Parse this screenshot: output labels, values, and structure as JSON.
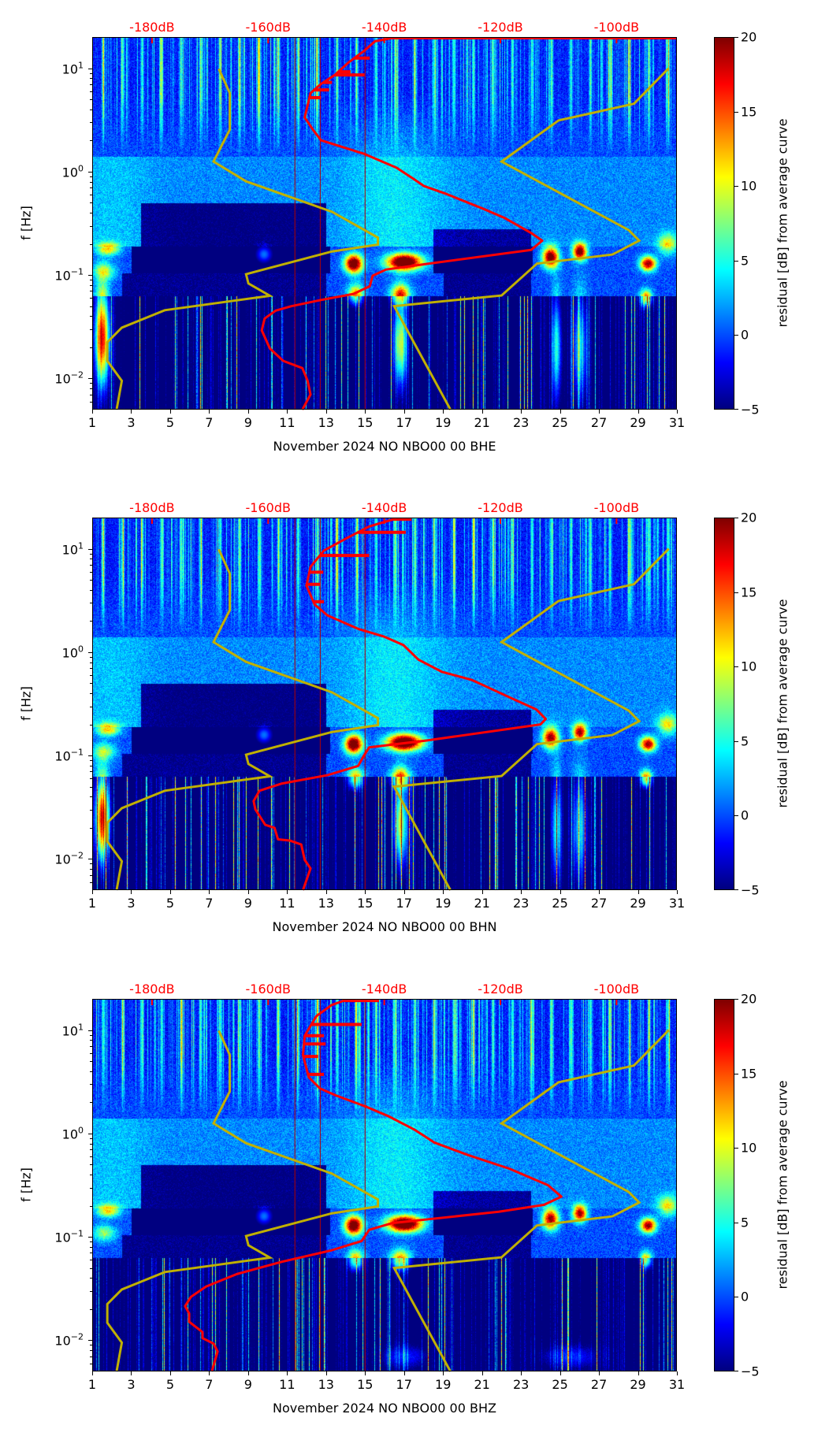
{
  "noise_models": {
    "low_noise_model": {
      "color": "#c0b000",
      "points": [
        [
          -186.1,
          0.005
        ],
        [
          -185.2,
          0.0095
        ],
        [
          -187.7,
          0.0148
        ],
        [
          -187.7,
          0.0224
        ],
        [
          -185.2,
          0.031
        ],
        [
          -177.8,
          0.0457
        ],
        [
          -159.7,
          0.063
        ],
        [
          -163.4,
          0.083
        ],
        [
          -163.8,
          0.102
        ],
        [
          -149.0,
          0.169
        ],
        [
          -141.1,
          0.197
        ],
        [
          -141.1,
          0.23
        ],
        [
          -149.0,
          0.409
        ],
        [
          -163.8,
          0.805
        ],
        [
          -169.4,
          1.25
        ],
        [
          -166.6,
          2.55
        ],
        [
          -166.6,
          5.74
        ],
        [
          -168.5,
          9.86
        ]
      ]
    },
    "high_noise_model": {
      "color": "#c0b000",
      "points": [
        [
          -128.6,
          0.005
        ],
        [
          -138.3,
          0.05
        ],
        [
          -119.8,
          0.0635
        ],
        [
          -113.7,
          0.129
        ],
        [
          -100.7,
          0.158
        ],
        [
          -96.1,
          0.215
        ],
        [
          -97.9,
          0.272
        ],
        [
          -119.8,
          1.25
        ],
        [
          -110.0,
          3.12
        ],
        [
          -97.0,
          4.53
        ],
        [
          -91.0,
          10.0
        ]
      ]
    }
  },
  "chart_data": [
    {
      "type": "heatmap",
      "xlabel": "November 2024 NO NBO00 00 BHE",
      "ylabel": "f [Hz]",
      "xlim": [
        1,
        31
      ],
      "ylim": [
        0.005,
        20
      ],
      "xticks": [
        1,
        3,
        5,
        7,
        9,
        11,
        13,
        15,
        17,
        19,
        21,
        23,
        25,
        27,
        29,
        31
      ],
      "yticks": [
        {
          "value": 0.01,
          "base": "10",
          "exp": "−2"
        },
        {
          "value": 0.1,
          "base": "10",
          "exp": "−1"
        },
        {
          "value": 1,
          "base": "10",
          "exp": "0"
        },
        {
          "value": 10,
          "base": "10",
          "exp": "1"
        }
      ],
      "top_axis": {
        "range_dB": [
          -190.3,
          -89.6
        ],
        "values": [
          -180,
          -160,
          -140,
          -120,
          -100
        ],
        "labels": [
          "-180dB",
          "-160dB",
          "-140dB",
          "-120dB",
          "-100dB"
        ],
        "color": "#ff0000"
      },
      "colorbar": {
        "label": "residual [dB] from average curve",
        "range": [
          -5,
          20
        ],
        "ticks": [
          20,
          15,
          10,
          5,
          0,
          -5
        ],
        "tick_labels": [
          "20",
          "15",
          "10",
          "5",
          "0",
          "−5"
        ],
        "colormap": "jet"
      },
      "pdf_mode_curve": {
        "color": "#ff0000",
        "top_line": true,
        "points": [
          [
            -154.1,
            0.005
          ],
          [
            -152.7,
            0.007
          ],
          [
            -153.2,
            0.0095
          ],
          [
            -154.1,
            0.0126
          ],
          [
            -157.4,
            0.0148
          ],
          [
            -159.7,
            0.0195
          ],
          [
            -161.1,
            0.0292
          ],
          [
            -160.6,
            0.038
          ],
          [
            -158.7,
            0.0453
          ],
          [
            -156.0,
            0.05
          ],
          [
            -150.9,
            0.0574
          ],
          [
            -145.3,
            0.0657
          ],
          [
            -142.5,
            0.0779
          ],
          [
            -142.0,
            0.0986
          ],
          [
            -139.7,
            0.113
          ],
          [
            -132.3,
            0.129
          ],
          [
            -114.7,
            0.175
          ],
          [
            -112.8,
            0.215
          ],
          [
            -114.7,
            0.255
          ],
          [
            -119.3,
            0.357
          ],
          [
            -123.0,
            0.438
          ],
          [
            -129.5,
            0.614
          ],
          [
            -133.2,
            0.727
          ],
          [
            -135.1,
            0.861
          ],
          [
            -137.9,
            1.09
          ],
          [
            -143.4,
            1.48
          ],
          [
            -150.9,
            2.01
          ],
          [
            -152.3,
            2.55
          ],
          [
            -153.7,
            3.34
          ],
          [
            -153.2,
            4.38
          ],
          [
            -152.7,
            5.74
          ],
          [
            -150.9,
            7.03
          ],
          [
            -148.5,
            8.61
          ],
          [
            -146.2,
            11.3
          ],
          [
            -143.4,
            14.8
          ],
          [
            -141.6,
            18.2
          ],
          [
            -139.0,
            19.4
          ]
        ],
        "spikes": [
          [
            12.5,
            -142.5
          ],
          [
            9.23,
            -145.8
          ],
          [
            8.61,
            -143.4
          ],
          [
            7.28,
            -149.0
          ],
          [
            6.17,
            -149.5
          ],
          [
            5.19,
            -150.9
          ]
        ]
      },
      "red_vertical_days": [
        11.4,
        12.7,
        15.0
      ],
      "events": [
        [
          1.5,
          0.025,
          24,
          0.35,
          0.45
        ],
        [
          14.4,
          0.13,
          24,
          0.45,
          0.09
        ],
        [
          17.0,
          0.135,
          26,
          0.9,
          0.08
        ],
        [
          24.5,
          0.15,
          22,
          0.4,
          0.1
        ],
        [
          26.0,
          0.17,
          22,
          0.35,
          0.08
        ],
        [
          29.5,
          0.13,
          20,
          0.4,
          0.07
        ],
        [
          29.4,
          0.06,
          16,
          0.3,
          0.08
        ],
        [
          14.5,
          0.065,
          14,
          0.4,
          0.1
        ],
        [
          16.8,
          0.065,
          14,
          0.5,
          0.1
        ],
        [
          16.8,
          0.022,
          16,
          0.35,
          0.4
        ],
        [
          1.8,
          0.18,
          12,
          0.6,
          0.06
        ],
        [
          1.6,
          0.11,
          8,
          0.6,
          0.08
        ],
        [
          9.8,
          0.16,
          8,
          0.4,
          0.08
        ],
        [
          24.8,
          0.02,
          12,
          0.25,
          0.5
        ],
        [
          26.0,
          0.02,
          10,
          0.4,
          0.5
        ],
        [
          30.5,
          0.2,
          10,
          0.5,
          0.1
        ]
      ]
    },
    {
      "type": "heatmap",
      "xlabel": "November 2024 NO NBO00 00 BHN",
      "ylabel": "f [Hz]",
      "xlim": [
        1,
        31
      ],
      "ylim": [
        0.005,
        20
      ],
      "xticks": [
        1,
        3,
        5,
        7,
        9,
        11,
        13,
        15,
        17,
        19,
        21,
        23,
        25,
        27,
        29,
        31
      ],
      "yticks": [
        {
          "value": 0.01,
          "base": "10",
          "exp": "−2"
        },
        {
          "value": 0.1,
          "base": "10",
          "exp": "−1"
        },
        {
          "value": 1,
          "base": "10",
          "exp": "0"
        },
        {
          "value": 10,
          "base": "10",
          "exp": "1"
        }
      ],
      "top_axis": {
        "range_dB": [
          -190.3,
          -89.6
        ],
        "values": [
          -180,
          -160,
          -140,
          -120,
          -100
        ],
        "labels": [
          "-180dB",
          "-160dB",
          "-140dB",
          "-120dB",
          "-100dB"
        ],
        "color": "#ff0000"
      },
      "colorbar": {
        "label": "residual [dB] from average curve",
        "range": [
          -5,
          20
        ],
        "ticks": [
          20,
          15,
          10,
          5,
          0,
          -5
        ],
        "tick_labels": [
          "20",
          "15",
          "10",
          "5",
          "0",
          "−5"
        ],
        "colormap": "jet"
      },
      "pdf_mode_curve": {
        "color": "#ff0000",
        "top_line": false,
        "points": [
          [
            -154.0,
            0.005
          ],
          [
            -152.7,
            0.0081
          ],
          [
            -153.7,
            0.0098
          ],
          [
            -154.3,
            0.0138
          ],
          [
            -156.3,
            0.0151
          ],
          [
            -158.3,
            0.0155
          ],
          [
            -158.9,
            0.02
          ],
          [
            -160.5,
            0.0214
          ],
          [
            -162.2,
            0.0302
          ],
          [
            -162.5,
            0.0363
          ],
          [
            -161.5,
            0.0457
          ],
          [
            -157.6,
            0.0537
          ],
          [
            -149.8,
            0.0646
          ],
          [
            -144.5,
            0.0794
          ],
          [
            -143.5,
            0.1
          ],
          [
            -142.6,
            0.12
          ],
          [
            -132.7,
            0.14
          ],
          [
            -113.1,
            0.2
          ],
          [
            -112.2,
            0.226
          ],
          [
            -113.8,
            0.279
          ],
          [
            -118.4,
            0.365
          ],
          [
            -124.9,
            0.538
          ],
          [
            -130.1,
            0.646
          ],
          [
            -134.1,
            0.845
          ],
          [
            -136.7,
            1.17
          ],
          [
            -140.0,
            1.41
          ],
          [
            -144.5,
            1.68
          ],
          [
            -149.8,
            2.27
          ],
          [
            -152.0,
            2.89
          ],
          [
            -153.4,
            4.4
          ],
          [
            -152.7,
            6.68
          ],
          [
            -150.4,
            9.59
          ],
          [
            -146.5,
            12.6
          ],
          [
            -142.6,
            16.4
          ],
          [
            -138.6,
            19.1
          ],
          [
            -135.3,
            19.1
          ]
        ],
        "spikes": [
          [
            14.4,
            -136.3
          ],
          [
            8.61,
            -142.6
          ],
          [
            5.93,
            -150.5
          ],
          [
            4.53,
            -151.0
          ],
          [
            3.07,
            -150.4
          ]
        ]
      },
      "red_vertical_days": [
        11.4,
        12.7,
        15.0
      ],
      "events": [
        [
          1.5,
          0.025,
          24,
          0.35,
          0.4
        ],
        [
          14.4,
          0.13,
          24,
          0.45,
          0.09
        ],
        [
          17.0,
          0.135,
          26,
          0.9,
          0.08
        ],
        [
          24.5,
          0.15,
          20,
          0.4,
          0.1
        ],
        [
          26.0,
          0.17,
          20,
          0.35,
          0.08
        ],
        [
          29.5,
          0.13,
          20,
          0.4,
          0.07
        ],
        [
          29.4,
          0.06,
          16,
          0.3,
          0.08
        ],
        [
          14.5,
          0.06,
          14,
          0.4,
          0.1
        ],
        [
          16.8,
          0.06,
          14,
          0.5,
          0.1
        ],
        [
          16.8,
          0.022,
          16,
          0.35,
          0.4
        ],
        [
          1.8,
          0.18,
          12,
          0.6,
          0.06
        ],
        [
          1.6,
          0.11,
          8,
          0.6,
          0.08
        ],
        [
          9.8,
          0.16,
          8,
          0.4,
          0.08
        ],
        [
          24.8,
          0.02,
          12,
          0.25,
          0.5
        ],
        [
          26.0,
          0.02,
          10,
          0.4,
          0.5
        ],
        [
          30.5,
          0.2,
          10,
          0.5,
          0.1
        ]
      ]
    },
    {
      "type": "heatmap",
      "xlabel": "November 2024 NO NBO00 00 BHZ",
      "ylabel": "f [Hz]",
      "xlim": [
        1,
        31
      ],
      "ylim": [
        0.005,
        20
      ],
      "xticks": [
        1,
        3,
        5,
        7,
        9,
        11,
        13,
        15,
        17,
        19,
        21,
        23,
        25,
        27,
        29,
        31
      ],
      "yticks": [
        {
          "value": 0.01,
          "base": "10",
          "exp": "−2"
        },
        {
          "value": 0.1,
          "base": "10",
          "exp": "−1"
        },
        {
          "value": 1,
          "base": "10",
          "exp": "0"
        },
        {
          "value": 10,
          "base": "10",
          "exp": "1"
        }
      ],
      "top_axis": {
        "range_dB": [
          -190.3,
          -89.6
        ],
        "values": [
          -180,
          -160,
          -140,
          -120,
          -100
        ],
        "labels": [
          "-180dB",
          "-160dB",
          "-140dB",
          "-120dB",
          "-100dB"
        ],
        "color": "#ff0000"
      },
      "colorbar": {
        "label": "residual [dB] from average curve",
        "range": [
          -5,
          20
        ],
        "ticks": [
          20,
          15,
          10,
          5,
          0,
          -5
        ],
        "tick_labels": [
          "20",
          "15",
          "10",
          "5",
          "0",
          "−5"
        ],
        "colormap": "jet"
      },
      "pdf_mode_curve": {
        "color": "#ff0000",
        "top_line": false,
        "points": [
          [
            -169.7,
            0.005
          ],
          [
            -168.7,
            0.0078
          ],
          [
            -169.4,
            0.0093
          ],
          [
            -171.3,
            0.0105
          ],
          [
            -171.3,
            0.012
          ],
          [
            -173.6,
            0.0151
          ],
          [
            -173.6,
            0.0182
          ],
          [
            -174.3,
            0.0214
          ],
          [
            -173.3,
            0.0263
          ],
          [
            -170.7,
            0.0331
          ],
          [
            -165.4,
            0.0437
          ],
          [
            -157.6,
            0.0575
          ],
          [
            -149.1,
            0.0741
          ],
          [
            -143.9,
            0.0912
          ],
          [
            -142.6,
            0.117
          ],
          [
            -138.6,
            0.136
          ],
          [
            -120.3,
            0.175
          ],
          [
            -112.5,
            0.204
          ],
          [
            -109.5,
            0.245
          ],
          [
            -111.8,
            0.316
          ],
          [
            -118.4,
            0.455
          ],
          [
            -125.6,
            0.619
          ],
          [
            -131.4,
            0.818
          ],
          [
            -134.7,
            1.08
          ],
          [
            -139.3,
            1.47
          ],
          [
            -143.2,
            1.82
          ],
          [
            -148.4,
            2.34
          ],
          [
            -151.1,
            2.73
          ],
          [
            -153.0,
            3.49
          ],
          [
            -154.0,
            5.73
          ],
          [
            -153.7,
            8.81
          ],
          [
            -151.7,
            13.6
          ],
          [
            -149.1,
            17.4
          ],
          [
            -147.1,
            19.1
          ],
          [
            -140.9,
            19.1
          ]
        ],
        "spikes": [
          [
            11.3,
            -143.9
          ],
          [
            8.81,
            -150.4
          ],
          [
            7.33,
            -150.1
          ],
          [
            5.55,
            -151.4
          ],
          [
            3.72,
            -150.4
          ]
        ]
      },
      "red_vertical_days": [
        11.4,
        12.7,
        15.0
      ],
      "events": [
        [
          14.4,
          0.13,
          24,
          0.45,
          0.09
        ],
        [
          17.0,
          0.135,
          26,
          0.9,
          0.08
        ],
        [
          24.5,
          0.15,
          20,
          0.4,
          0.1
        ],
        [
          26.0,
          0.17,
          20,
          0.35,
          0.08
        ],
        [
          29.5,
          0.13,
          20,
          0.4,
          0.07
        ],
        [
          29.4,
          0.06,
          14,
          0.3,
          0.08
        ],
        [
          14.5,
          0.06,
          14,
          0.4,
          0.1
        ],
        [
          16.8,
          0.06,
          15,
          0.5,
          0.1
        ],
        [
          1.8,
          0.18,
          12,
          0.6,
          0.06
        ],
        [
          1.6,
          0.11,
          8,
          0.6,
          0.08
        ],
        [
          9.8,
          0.16,
          8,
          0.4,
          0.08
        ],
        [
          17.0,
          0.007,
          6,
          1.2,
          0.12
        ],
        [
          25.5,
          0.007,
          6,
          1.5,
          0.12
        ],
        [
          30.5,
          0.2,
          10,
          0.5,
          0.1
        ]
      ]
    }
  ]
}
